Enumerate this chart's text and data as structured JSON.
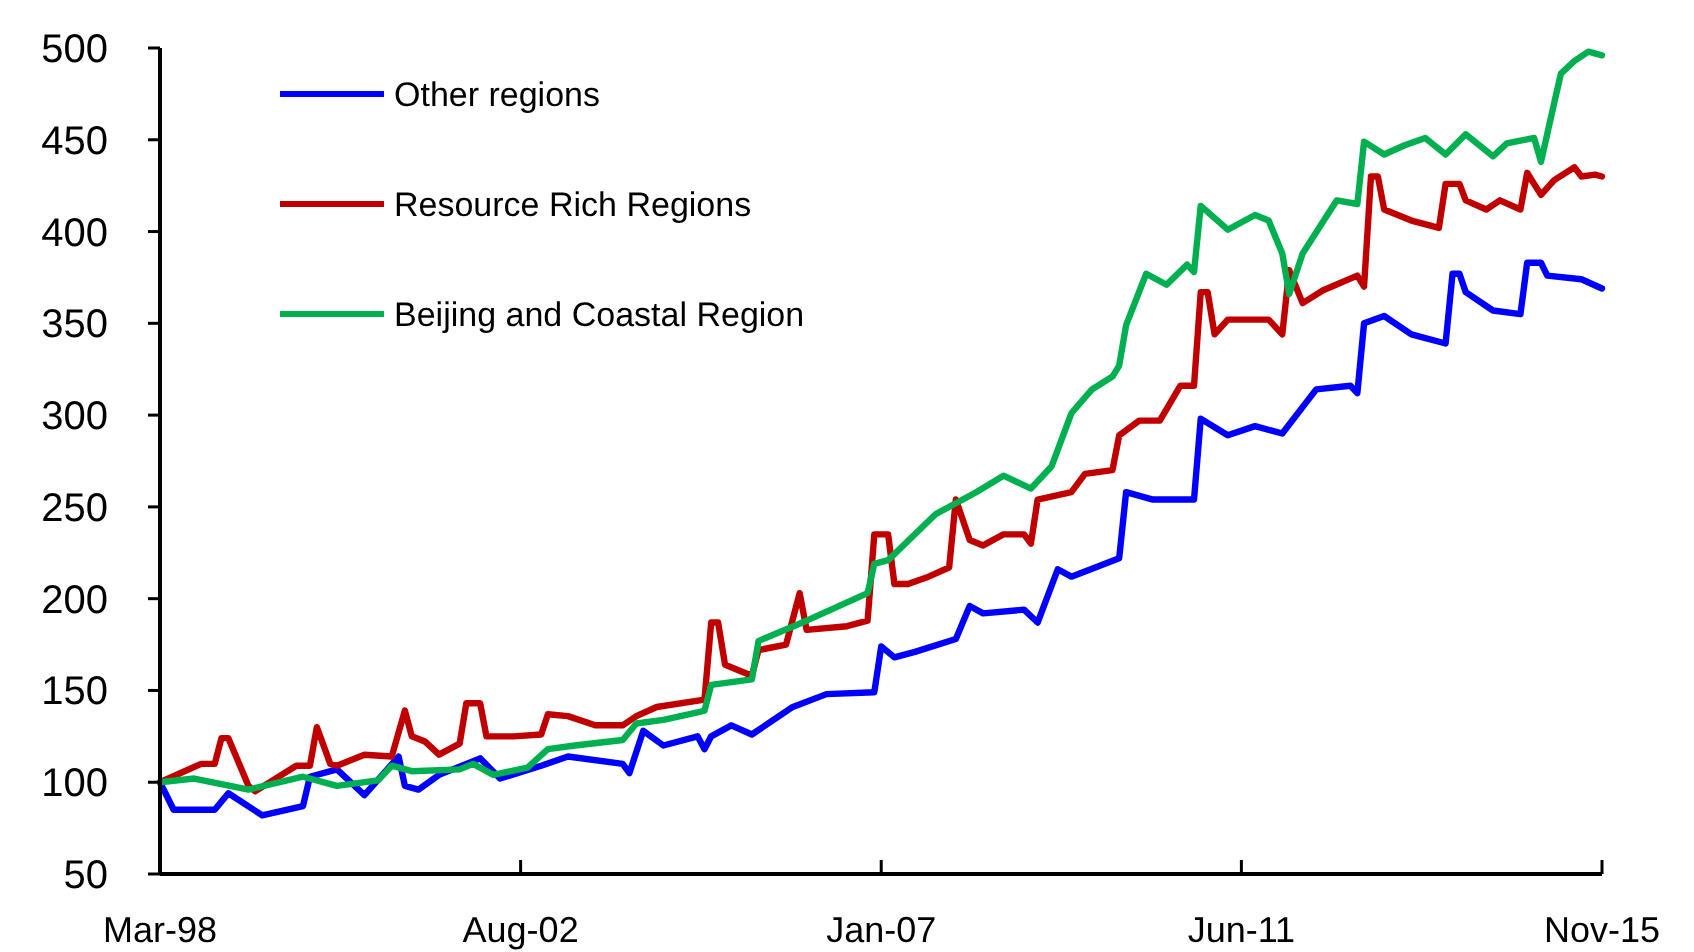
{
  "chart_data": {
    "type": "line",
    "xlim": [
      "1998-03",
      "2015-11"
    ],
    "xticks": [
      {
        "value": "1998-03",
        "label": "Mar-98"
      },
      {
        "value": "2002-08",
        "label": "Aug-02"
      },
      {
        "value": "2007-01",
        "label": "Jan-07"
      },
      {
        "value": "2011-06",
        "label": "Jun-11"
      },
      {
        "value": "2015-11",
        "label": "Nov-15"
      }
    ],
    "ylim": [
      50,
      500
    ],
    "yticks": [
      50,
      100,
      150,
      200,
      250,
      300,
      350,
      400,
      450,
      500
    ],
    "grid": false,
    "legend": "top left",
    "line_style": "solid",
    "marker": "none",
    "series": [
      {
        "name": "Other regions",
        "color": "#0000ff",
        "x": [
          "1998-03",
          "1998-05",
          "1998-11",
          "1999-01",
          "1999-06",
          "1999-12",
          "2000-01",
          "2000-05",
          "2000-09",
          "2001-02",
          "2001-03",
          "2001-05",
          "2001-08",
          "2002-02",
          "2002-05",
          "2002-11",
          "2003-03",
          "2003-11",
          "2003-12",
          "2004-02",
          "2004-05",
          "2004-10",
          "2004-11",
          "2004-12",
          "2005-03",
          "2005-06",
          "2005-12",
          "2006-05",
          "2006-12",
          "2007-01",
          "2007-03",
          "2007-06",
          "2007-12",
          "2008-02",
          "2008-04",
          "2008-10",
          "2008-12",
          "2009-03",
          "2009-05",
          "2009-12",
          "2010-01",
          "2010-05",
          "2010-11",
          "2010-12",
          "2011-04",
          "2011-08",
          "2011-12",
          "2012-05",
          "2012-10",
          "2012-11",
          "2012-12",
          "2013-03",
          "2013-07",
          "2013-12",
          "2014-01",
          "2014-02",
          "2014-03",
          "2014-07",
          "2014-11",
          "2014-12",
          "2015-02",
          "2015-03",
          "2015-08",
          "2015-11"
        ],
        "values": [
          100,
          85,
          85,
          94,
          82,
          87,
          103,
          107,
          93,
          114,
          98,
          96,
          104,
          113,
          102,
          109,
          114,
          110,
          105,
          128,
          120,
          125,
          118,
          125,
          131,
          126,
          141,
          148,
          149,
          174,
          168,
          171,
          178,
          196,
          192,
          194,
          187,
          216,
          212,
          222,
          258,
          254,
          254,
          298,
          289,
          294,
          290,
          314,
          316,
          312,
          350,
          354,
          344,
          339,
          377,
          377,
          367,
          357,
          355,
          383,
          383,
          376,
          374,
          369
        ]
      },
      {
        "name": "Resource Rich Regions",
        "color": "#c00000",
        "x": [
          "1998-03",
          "1998-09",
          "1998-11",
          "1998-12",
          "1999-01",
          "1999-04",
          "1999-05",
          "1999-11",
          "2000-01",
          "2000-02",
          "2000-04",
          "2000-05",
          "2000-09",
          "2001-01",
          "2001-03",
          "2001-04",
          "2001-06",
          "2001-08",
          "2001-11",
          "2001-12",
          "2002-02",
          "2002-03",
          "2002-07",
          "2002-11",
          "2002-12",
          "2003-03",
          "2003-07",
          "2003-11",
          "2004-01",
          "2004-04",
          "2004-11",
          "2004-12",
          "2005-01",
          "2005-02",
          "2005-06",
          "2005-07",
          "2005-11",
          "2006-01",
          "2006-02",
          "2006-08",
          "2006-11",
          "2006-12",
          "2007-02",
          "2007-03",
          "2007-05",
          "2007-08",
          "2007-11",
          "2007-12",
          "2008-02",
          "2008-04",
          "2008-07",
          "2008-10",
          "2008-11",
          "2008-12",
          "2009-05",
          "2009-07",
          "2009-11",
          "2009-12",
          "2010-03",
          "2010-06",
          "2010-09",
          "2010-11",
          "2010-12",
          "2011-01",
          "2011-02",
          "2011-04",
          "2011-10",
          "2011-12",
          "2012-01",
          "2012-03",
          "2012-06",
          "2012-11",
          "2012-12",
          "2013-01",
          "2013-02",
          "2013-03",
          "2013-07",
          "2013-11",
          "2013-12",
          "2014-02",
          "2014-03",
          "2014-06",
          "2014-08",
          "2014-11",
          "2014-12",
          "2015-02",
          "2015-04",
          "2015-07",
          "2015-08",
          "2015-10",
          "2015-11"
        ],
        "values": [
          100,
          110,
          110,
          124,
          124,
          98,
          95,
          109,
          109,
          130,
          110,
          109,
          115,
          114,
          139,
          125,
          122,
          115,
          121,
          143,
          143,
          125,
          125,
          126,
          137,
          136,
          131,
          131,
          136,
          141,
          145,
          187,
          187,
          164,
          158,
          172,
          175,
          203,
          183,
          185,
          188,
          235,
          235,
          208,
          208,
          212,
          217,
          254,
          232,
          229,
          235,
          235,
          230,
          254,
          258,
          268,
          270,
          289,
          297,
          297,
          316,
          316,
          367,
          367,
          344,
          352,
          352,
          344,
          379,
          361,
          368,
          376,
          370,
          430,
          430,
          412,
          406,
          402,
          426,
          426,
          417,
          412,
          417,
          412,
          432,
          420,
          428,
          435,
          430,
          431,
          430
        ]
      },
      {
        "name": "Beijing and Coastal Region",
        "color": "#00b050",
        "x": [
          "1998-03",
          "1998-08",
          "1999-04",
          "1999-12",
          "2000-05",
          "2000-11",
          "2001-01",
          "2001-04",
          "2001-11",
          "2002-01",
          "2002-04",
          "2002-09",
          "2002-12",
          "2003-04",
          "2003-11",
          "2004-01",
          "2004-05",
          "2004-10",
          "2004-11",
          "2004-12",
          "2005-06",
          "2005-07",
          "2006-02",
          "2006-11",
          "2006-12",
          "2007-02",
          "2007-09",
          "2008-03",
          "2008-07",
          "2008-11",
          "2009-02",
          "2009-05",
          "2009-08",
          "2009-11",
          "2009-12",
          "2010-01",
          "2010-04",
          "2010-07",
          "2010-10",
          "2010-11",
          "2010-12",
          "2011-04",
          "2011-08",
          "2011-10",
          "2011-12",
          "2012-01",
          "2012-03",
          "2012-08",
          "2012-11",
          "2012-12",
          "2013-03",
          "2013-06",
          "2013-09",
          "2013-12",
          "2014-03",
          "2014-07",
          "2014-09",
          "2015-01",
          "2015-02",
          "2015-04",
          "2015-05",
          "2015-07",
          "2015-09",
          "2015-11"
        ],
        "values": [
          100,
          102,
          96,
          103,
          98,
          101,
          109,
          106,
          107,
          110,
          104,
          108,
          118,
          120,
          123,
          132,
          134,
          138,
          139,
          153,
          156,
          177,
          188,
          203,
          219,
          221,
          246,
          258,
          267,
          260,
          272,
          301,
          314,
          321,
          327,
          349,
          377,
          371,
          382,
          378,
          414,
          401,
          409,
          406,
          388,
          366,
          388,
          417,
          415,
          449,
          442,
          447,
          451,
          442,
          453,
          441,
          448,
          451,
          438,
          470,
          486,
          493,
          498,
          496
        ]
      }
    ]
  }
}
